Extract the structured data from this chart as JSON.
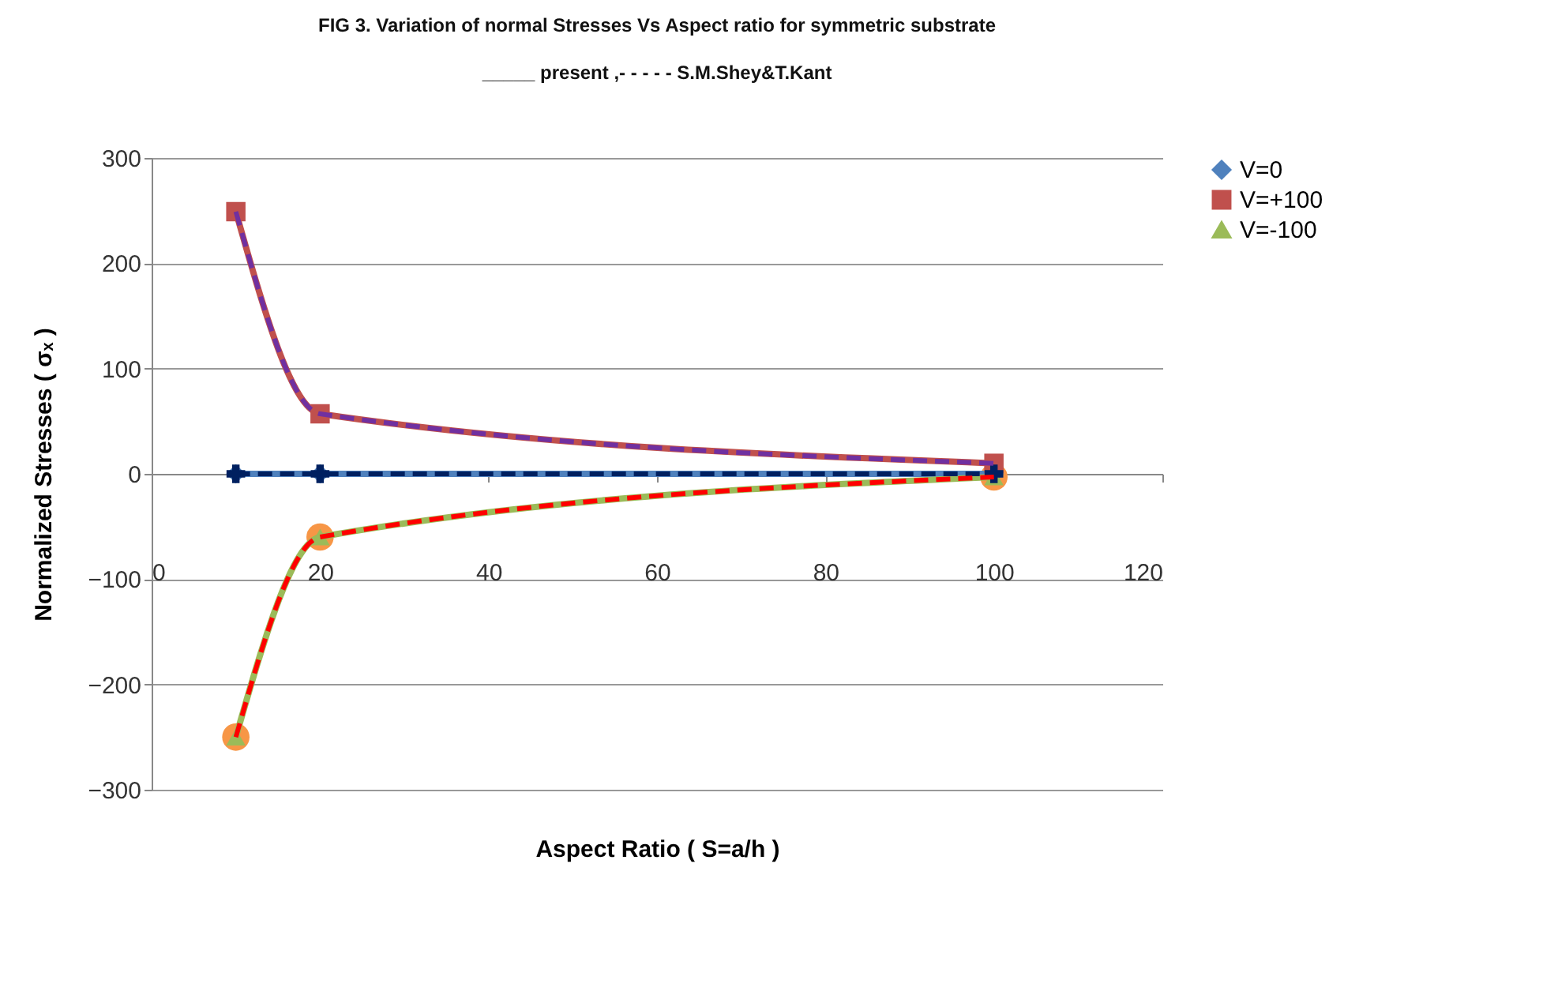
{
  "chart_data": {
    "type": "line",
    "title": "FIG 3. Variation of normal Stresses Vs Aspect ratio for  symmetric substrate",
    "subtitle": "_____  present ,- - - - - S.M.Shey&T.Kant",
    "xlabel": "Aspect Ratio ( S=a/h )",
    "ylabel": "Normalized  Stresses ( σₓ )",
    "x": [
      10,
      20,
      100
    ],
    "series": [
      {
        "type": "scatter",
        "color": "#f79646",
        "values": [
          -250,
          -60,
          -3
        ],
        "marker": "circle"
      },
      {
        "name": "V=0",
        "color": "#4f81bd",
        "values": [
          0,
          0,
          0
        ],
        "marker": "diamond",
        "line_style": "solid"
      },
      {
        "name": "V=+100",
        "color": "#c0504d",
        "values": [
          249,
          57,
          10
        ],
        "marker": "square",
        "line_style": "solid"
      },
      {
        "name": "V=-100",
        "color": "#9bbb59",
        "values": [
          -250,
          -60,
          -3
        ],
        "marker": "triangle",
        "line_style": "solid"
      },
      {
        "color": "#002060",
        "values": [
          0,
          0,
          0
        ],
        "marker": "cross",
        "line_style": "dashed"
      },
      {
        "color": "#7030a0",
        "values": [
          249,
          57,
          10
        ],
        "marker": "none",
        "line_style": "dashed"
      },
      {
        "color": "#ff0000",
        "values": [
          -250,
          -60,
          -3
        ],
        "marker": "none",
        "line_style": "dashed"
      }
    ],
    "xlim": [
      0,
      120
    ],
    "xticks": [
      0,
      20,
      40,
      60,
      80,
      100,
      120
    ],
    "ylim": [
      -300,
      300
    ],
    "yticks": [
      -300,
      -200,
      -100,
      0,
      100,
      200,
      300
    ],
    "grid": "y",
    "legend": "right"
  }
}
